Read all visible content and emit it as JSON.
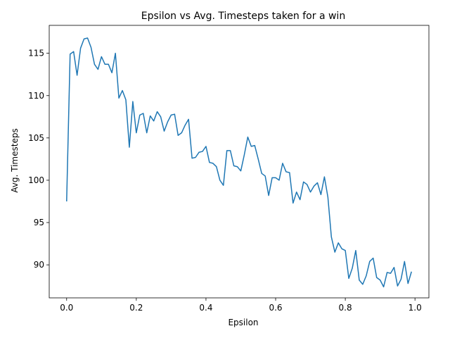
{
  "chart_data": {
    "type": "line",
    "title": "Epsilon vs Avg. Timesteps taken for a win",
    "xlabel": "Epsilon",
    "ylabel": "Avg. Timesteps",
    "xlim": [
      -0.05,
      1.04
    ],
    "ylim": [
      86.1,
      118.3
    ],
    "xticks": [
      0.0,
      0.2,
      0.4,
      0.6,
      0.8,
      1.0
    ],
    "xtick_labels": [
      "0.0",
      "0.2",
      "0.4",
      "0.6",
      "0.8",
      "1.0"
    ],
    "yticks": [
      90,
      95,
      100,
      105,
      110,
      115
    ],
    "ytick_labels": [
      "90",
      "95",
      "100",
      "105",
      "110",
      "115"
    ],
    "grid": false,
    "legend": "none",
    "line_color": "#1f77b4",
    "series": [
      {
        "x": [
          0.0,
          0.01,
          0.02,
          0.03,
          0.04,
          0.05,
          0.06,
          0.07,
          0.08,
          0.09,
          0.1,
          0.11,
          0.12,
          0.13,
          0.14,
          0.15,
          0.16,
          0.17,
          0.18,
          0.19,
          0.2,
          0.21,
          0.22,
          0.23,
          0.24,
          0.25,
          0.26,
          0.27,
          0.28,
          0.29,
          0.3,
          0.31,
          0.32,
          0.33,
          0.34,
          0.35,
          0.36,
          0.37,
          0.38,
          0.39,
          0.4,
          0.41,
          0.42,
          0.43,
          0.44,
          0.45,
          0.46,
          0.47,
          0.48,
          0.49,
          0.5,
          0.51,
          0.52,
          0.53,
          0.54,
          0.55,
          0.56,
          0.57,
          0.58,
          0.59,
          0.6,
          0.61,
          0.62,
          0.63,
          0.64,
          0.65,
          0.66,
          0.67,
          0.68,
          0.69,
          0.7,
          0.71,
          0.72,
          0.73,
          0.74,
          0.75,
          0.76,
          0.77,
          0.78,
          0.79,
          0.8,
          0.81,
          0.82,
          0.83,
          0.84,
          0.85,
          0.86,
          0.87,
          0.88,
          0.89,
          0.9,
          0.91,
          0.92,
          0.93,
          0.94,
          0.95,
          0.96,
          0.97,
          0.98,
          0.99
        ],
        "values": [
          97.5,
          114.9,
          115.2,
          112.4,
          115.6,
          116.7,
          116.8,
          115.7,
          113.7,
          113.1,
          114.6,
          113.7,
          113.7,
          112.7,
          115.0,
          109.7,
          110.6,
          109.5,
          103.9,
          109.3,
          105.6,
          107.7,
          107.9,
          105.6,
          107.6,
          107.0,
          108.1,
          107.5,
          105.8,
          106.9,
          107.7,
          107.8,
          105.3,
          105.6,
          106.5,
          107.2,
          102.6,
          102.7,
          103.3,
          103.4,
          104.0,
          102.1,
          102.0,
          101.6,
          100.0,
          99.4,
          103.5,
          103.5,
          101.7,
          101.6,
          101.1,
          103.0,
          105.1,
          104.0,
          104.1,
          102.5,
          100.8,
          100.5,
          98.2,
          100.3,
          100.3,
          100.0,
          102.0,
          101.0,
          100.9,
          97.3,
          98.6,
          97.7,
          99.8,
          99.5,
          98.6,
          99.3,
          99.7,
          98.3,
          100.4,
          98.0,
          93.3,
          91.5,
          92.6,
          91.9,
          91.7,
          88.4,
          89.6,
          91.7,
          88.2,
          87.7,
          88.7,
          90.4,
          90.8,
          88.5,
          88.2,
          87.4,
          89.1,
          89.0,
          89.7,
          87.5,
          88.3,
          90.4,
          87.8,
          89.2
        ]
      }
    ]
  }
}
